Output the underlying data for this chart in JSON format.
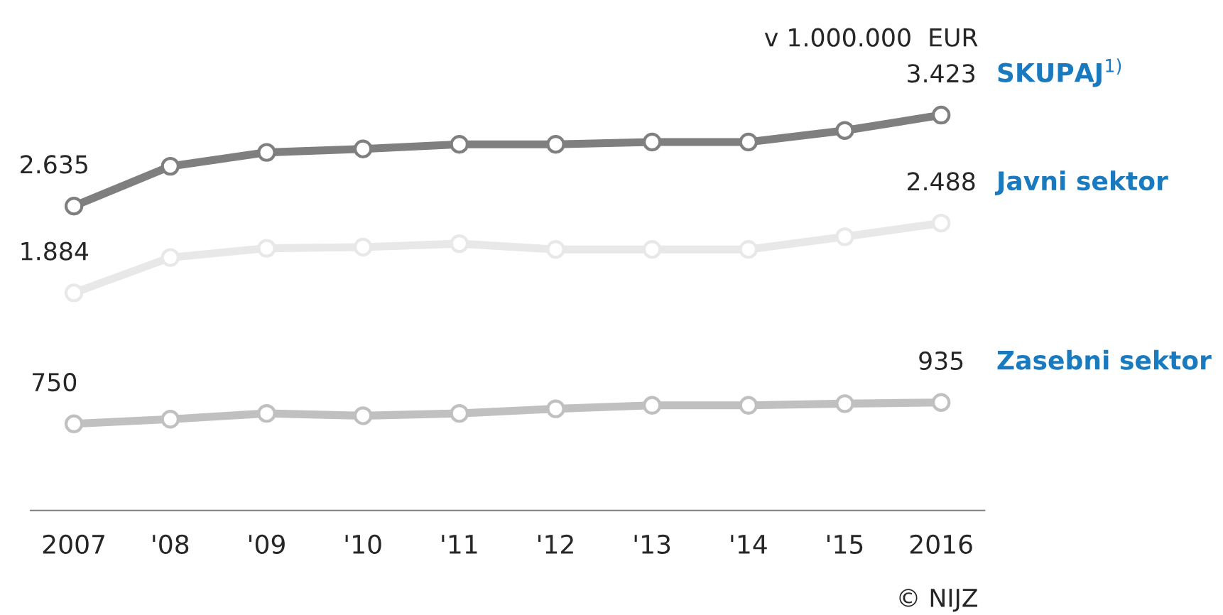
{
  "chart_data": {
    "type": "line",
    "categories": [
      "2007",
      "'08",
      "'09",
      "'10",
      "'11",
      "'12",
      "'13",
      "'14",
      "'15",
      "2016"
    ],
    "series": [
      {
        "name": "SKUPAJ$^{1)}$",
        "color": "#7f7f7f",
        "values": [
          2635,
          2980,
          3100,
          3130,
          3170,
          3170,
          3190,
          3190,
          3290,
          3423
        ],
        "value_labels": [
          "2.635",
          null,
          null,
          null,
          null,
          null,
          null,
          null,
          null,
          "3.423"
        ]
      },
      {
        "name": "Javni sektor",
        "color": "#e8e8e8",
        "values": [
          1884,
          2190,
          2270,
          2280,
          2310,
          2260,
          2260,
          2260,
          2370,
          2488
        ],
        "value_labels": [
          "1.884",
          null,
          null,
          null,
          null,
          null,
          null,
          null,
          null,
          "2.488"
        ]
      },
      {
        "name": "Zasebni sektor",
        "color": "#c0c0c0",
        "values": [
          750,
          790,
          840,
          820,
          840,
          880,
          910,
          910,
          925,
          935
        ],
        "value_labels": [
          "750",
          null,
          null,
          null,
          null,
          null,
          null,
          null,
          null,
          "935"
        ]
      }
    ],
    "annotations": [
      "v 1.000.000  EUR",
      "© NIJZ"
    ],
    "marker": "circle",
    "line_style": "solid",
    "legend": false,
    "grid": false,
    "tick_labels": "x"
  }
}
